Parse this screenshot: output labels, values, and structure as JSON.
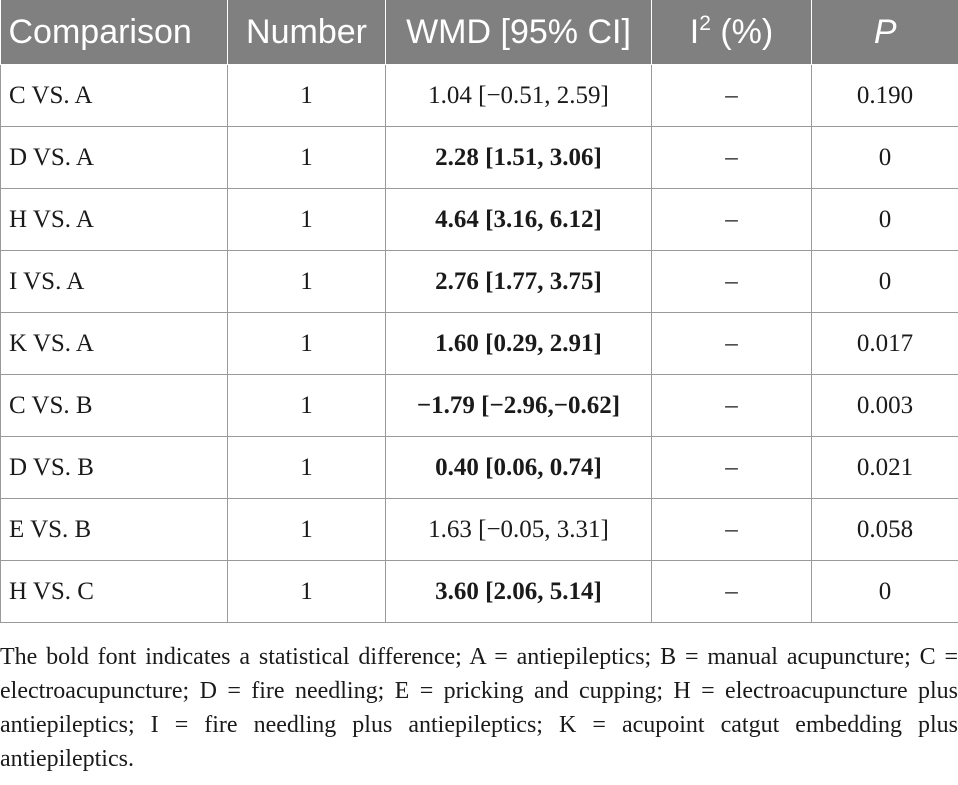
{
  "table": {
    "headers": {
      "comparison": "Comparison",
      "number": "Number",
      "wmd": "WMD [95% CI]",
      "i2_base": "I",
      "i2_sup": "2",
      "i2_unit": " (%)",
      "p": "P"
    },
    "rows": [
      {
        "comparison": "C VS. A",
        "number": "1",
        "wmd": "1.04 [−0.51, 2.59]",
        "bold": false,
        "i2": "–",
        "p": "0.190"
      },
      {
        "comparison": "D VS. A",
        "number": "1",
        "wmd": "2.28 [1.51, 3.06]",
        "bold": true,
        "i2": "–",
        "p": "0"
      },
      {
        "comparison": "H VS. A",
        "number": "1",
        "wmd": "4.64 [3.16, 6.12]",
        "bold": true,
        "i2": "–",
        "p": "0"
      },
      {
        "comparison": "I VS. A",
        "number": "1",
        "wmd": "2.76 [1.77, 3.75]",
        "bold": true,
        "i2": "–",
        "p": "0"
      },
      {
        "comparison": "K VS. A",
        "number": "1",
        "wmd": "1.60 [0.29, 2.91]",
        "bold": true,
        "i2": "–",
        "p": "0.017"
      },
      {
        "comparison": "C VS. B",
        "number": "1",
        "wmd": "−1.79 [−2.96,−0.62]",
        "bold": true,
        "i2": "–",
        "p": "0.003"
      },
      {
        "comparison": "D VS. B",
        "number": "1",
        "wmd": "0.40 [0.06, 0.74]",
        "bold": true,
        "i2": "–",
        "p": "0.021"
      },
      {
        "comparison": "E VS. B",
        "number": "1",
        "wmd": "1.63 [−0.05, 3.31]",
        "bold": false,
        "i2": "–",
        "p": "0.058"
      },
      {
        "comparison": "H VS. C",
        "number": "1",
        "wmd": "3.60 [2.06, 5.14]",
        "bold": true,
        "i2": "–",
        "p": "0"
      }
    ]
  },
  "footnote": "The bold font indicates a statistical difference; A = antiepileptics; B = manual acupuncture; C = electroacupuncture; D = fire needling; E = pricking and cupping; H = electroacupuncture plus antiepileptics; I = fire needling plus antiepileptics; K = acupoint catgut embedding plus antiepileptics."
}
